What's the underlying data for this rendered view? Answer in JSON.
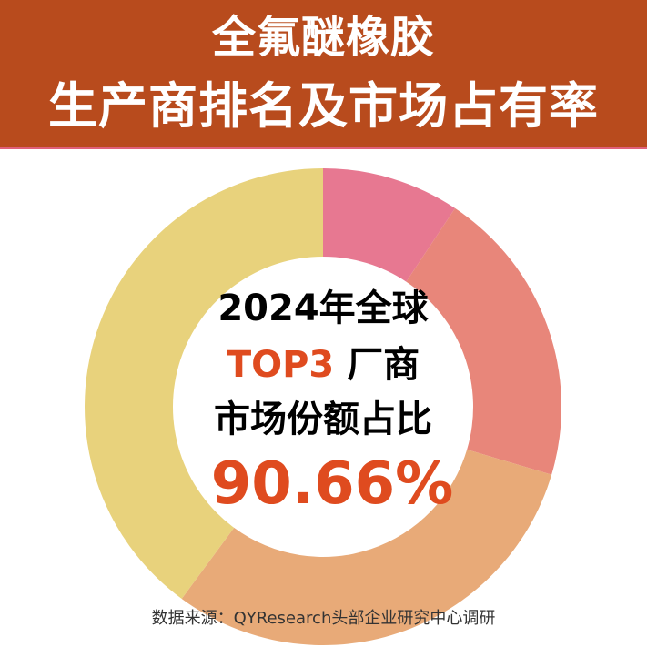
{
  "header": {
    "title_line1": "全氟醚橡胶",
    "title_line2": "生产商排名及市场占有率"
  },
  "center_text": {
    "line1": "2024年全球",
    "line2_highlight": "TOP3",
    "line2_rest": "厂商",
    "line3": "市场份额占比",
    "value": "90.66%"
  },
  "footer": {
    "source": "数据来源：QYResearch头部企业研究中心调研"
  },
  "chart_data": {
    "type": "pie",
    "donut": true,
    "start_angle": "12 o'clock",
    "direction": "clockwise",
    "slices": [
      {
        "value": 9.34,
        "color": "#e77891"
      },
      {
        "value": 20.26,
        "color": "#e8867a"
      },
      {
        "value": 30.5,
        "color": "#e8aa78"
      },
      {
        "value": 39.9,
        "color": "#e8d27c"
      }
    ],
    "annotation": "90.66%"
  }
}
